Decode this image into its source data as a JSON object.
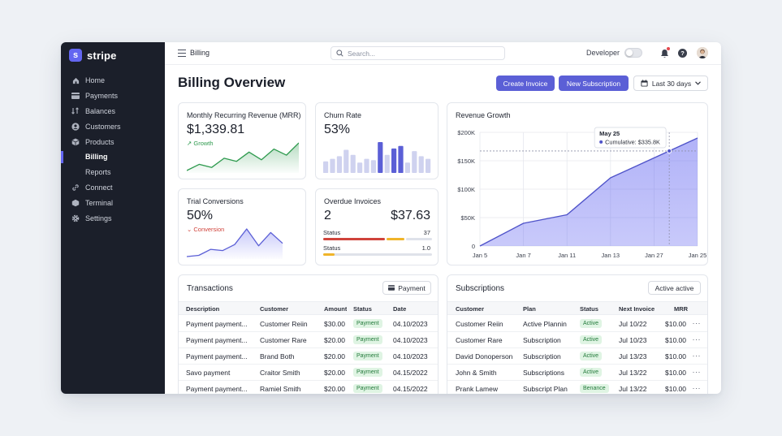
{
  "brand": {
    "logo_letter": "s",
    "name": "stripe"
  },
  "sidebar": {
    "items": [
      {
        "label": "Home",
        "icon": "home-icon"
      },
      {
        "label": "Payments",
        "icon": "card-icon"
      },
      {
        "label": "Balances",
        "icon": "balance-icon"
      },
      {
        "label": "Customers",
        "icon": "user-icon"
      },
      {
        "label": "Products",
        "icon": "box-icon"
      },
      {
        "label": "Billing",
        "active": true
      },
      {
        "label": "Reports"
      },
      {
        "label": "Connect",
        "icon": "link-icon"
      },
      {
        "label": "Terminal",
        "icon": "terminal-icon"
      },
      {
        "label": "Settings",
        "icon": "gear-icon"
      }
    ]
  },
  "topbar": {
    "crumb": "Billing",
    "search_placeholder": "Search...",
    "developer_label": "Developer",
    "developer_mode": false
  },
  "page": {
    "title": "Billing Overview",
    "create_invoice": "Create Invoice",
    "new_subscription": "New Subscription",
    "date_range": "Last 30 days"
  },
  "colors": {
    "accent": "#5b5fd6",
    "sidebar": "#1b1f2a",
    "green": "#2e9a4e",
    "red": "#d0433b",
    "amber": "#f0b429"
  },
  "mrr": {
    "title": "Monthly Recurring Revenue (MRR)",
    "value": "$1,339.81",
    "trend": "Growth"
  },
  "churn": {
    "title": "Churn Rate",
    "value": "53%"
  },
  "trial": {
    "title": "Trial Conversions",
    "value": "50%",
    "trend": "Conversion"
  },
  "overdue": {
    "title": "Overdue Invoices",
    "count": "2",
    "amount": "$37.63",
    "status_rows": [
      {
        "label": "Status",
        "value": "37"
      },
      {
        "label": "Status",
        "value": "1.0"
      }
    ]
  },
  "revenue": {
    "title": "Revenue Growth",
    "tooltip_date": "May 25",
    "tooltip_value": "Cumulative: $335.8K"
  },
  "chart_data": [
    {
      "type": "area",
      "title": "Revenue Growth",
      "x": [
        "Jan 5",
        "Jan 7",
        "Jan 11",
        "Jan 13",
        "Jan 27",
        "Jan 25"
      ],
      "y_ticks": [
        "$200K",
        "$150K",
        "$100K",
        "$50K",
        "0"
      ],
      "ylim": [
        0,
        200000
      ],
      "series": [
        {
          "values": [
            0,
            40000,
            55000,
            120000,
            155000,
            190000
          ]
        }
      ],
      "annotation": {
        "label": "May 25",
        "value": "Cumulative: $335.8K"
      },
      "grid": true
    },
    {
      "type": "line",
      "series": [
        {
          "values": [
            8,
            12,
            10,
            16,
            14,
            20,
            15,
            22,
            18,
            26
          ]
        }
      ]
    },
    {
      "type": "bar",
      "series": [
        {
          "values": [
            9,
            11,
            13,
            18,
            14,
            8,
            11,
            10,
            24,
            14,
            19,
            21,
            8,
            17,
            13,
            11
          ]
        }
      ]
    },
    {
      "type": "line",
      "series": [
        {
          "values": [
            3,
            4,
            9,
            8,
            13,
            26,
            12,
            23,
            14
          ]
        }
      ]
    }
  ],
  "transactions": {
    "title": "Transactions",
    "filter_label": "Payment",
    "columns": [
      "Description",
      "Customer",
      "Amount",
      "Status",
      "Date"
    ],
    "rows": [
      {
        "description": "Payment payment...",
        "customer": "Customer Reiin",
        "amount": "$30.00",
        "status": "Payment",
        "date": "04.10/2023"
      },
      {
        "description": "Payment payment...",
        "customer": "Customer Rare",
        "amount": "$20.00",
        "status": "Payment",
        "date": "04.10/2023"
      },
      {
        "description": "Payment payment...",
        "customer": "Brand Both",
        "amount": "$20.00",
        "status": "Payment",
        "date": "04.10/2023"
      },
      {
        "description": "Savo payment",
        "customer": "Craitor Smith",
        "amount": "$20.00",
        "status": "Payment",
        "date": "04.15/2022"
      },
      {
        "description": "Payment payment...",
        "customer": "Ramiel Smith",
        "amount": "$20.00",
        "status": "Payment",
        "date": "04.15/2022"
      }
    ]
  },
  "subscriptions": {
    "title": "Subscriptions",
    "filter_label": "Active active",
    "columns": [
      "Customer",
      "Plan",
      "Status",
      "Next Invoice",
      "MRR"
    ],
    "rows": [
      {
        "customer": "Customer Reiin",
        "plan": "Active Plannin",
        "status": "Active",
        "next": "Jul 10/22",
        "mrr": "$10.00"
      },
      {
        "customer": "Customer Rare",
        "plan": "Subscription",
        "status": "Active",
        "next": "Jul 10/23",
        "mrr": "$10.00"
      },
      {
        "customer": "David Donoperson",
        "plan": "Subscription",
        "status": "Active",
        "next": "Jul 13/23",
        "mrr": "$10.00"
      },
      {
        "customer": "John & Smith",
        "plan": "Subscriptions",
        "status": "Active",
        "next": "Jul 13/22",
        "mrr": "$10.00"
      },
      {
        "customer": "Prank Lamew",
        "plan": "Subscript Plan",
        "status": "Benance",
        "next": "Jul 13/22",
        "mrr": "$10.00"
      }
    ]
  },
  "row_menu_glyph": "···"
}
